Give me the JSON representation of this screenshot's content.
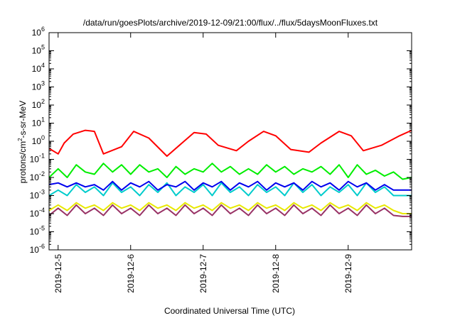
{
  "chart_data": {
    "type": "line",
    "title": "/data/run/goesPlots/archive/2019-12-09/21:00/flux/../flux/5daysMoonFluxes.txt",
    "xlabel": "Coordinated Universal Time (UTC)",
    "ylabel_base": "protons/cm",
    "ylabel_sup": "2",
    "ylabel_rest": "-s-sr-MeV",
    "yscale": "log",
    "ylim_exponent": [
      -6,
      6
    ],
    "y_tick_exponents": [
      -6,
      -5,
      -4,
      -3,
      -2,
      -1,
      0,
      1,
      2,
      3,
      4,
      5,
      6
    ],
    "y_tick_base": "10",
    "xlim": [
      "2019-12-04T21:00",
      "2019-12-09T21:00"
    ],
    "x_tick_labels": [
      "2019-12-5",
      "2019-12-6",
      "2019-12-7",
      "2019-12-8",
      "2019-12-9"
    ],
    "x_tick_values": [
      "2019-12-05T00:00",
      "2019-12-06T00:00",
      "2019-12-07T00:00",
      "2019-12-08T00:00",
      "2019-12-09T00:00"
    ],
    "grid": false,
    "legend": false,
    "series": [
      {
        "color": "#ff0000",
        "x": [
          "2019-12-04T21:00",
          "2019-12-05T00:00",
          "2019-12-05T02:00",
          "2019-12-05T05:00",
          "2019-12-05T09:00",
          "2019-12-05T12:00",
          "2019-12-05T15:00",
          "2019-12-05T21:00",
          "2019-12-06T01:00",
          "2019-12-06T06:00",
          "2019-12-06T12:00",
          "2019-12-06T17:00",
          "2019-12-06T21:00",
          "2019-12-07T01:00",
          "2019-12-07T05:00",
          "2019-12-07T11:00",
          "2019-12-07T15:00",
          "2019-12-07T20:00",
          "2019-12-08T00:00",
          "2019-12-08T05:00",
          "2019-12-08T11:00",
          "2019-12-08T15:00",
          "2019-12-08T21:00",
          "2019-12-09T01:00",
          "2019-12-09T05:00",
          "2019-12-09T11:00",
          "2019-12-09T17:00",
          "2019-12-09T21:00"
        ],
        "y": [
          0.4,
          0.2,
          0.8,
          2.5,
          4,
          3.5,
          0.2,
          0.5,
          3.5,
          1.5,
          0.15,
          0.8,
          3,
          2.5,
          0.6,
          0.3,
          1.0,
          3.5,
          2,
          0.35,
          0.25,
          0.8,
          3.5,
          2,
          0.3,
          0.6,
          2,
          4
        ]
      },
      {
        "color": "#00ee00",
        "x": [
          "2019-12-04T21:00",
          "2019-12-05T00:00",
          "2019-12-05T03:00",
          "2019-12-05T06:00",
          "2019-12-05T09:00",
          "2019-12-05T12:00",
          "2019-12-05T15:00",
          "2019-12-05T18:00",
          "2019-12-05T21:00",
          "2019-12-06T00:00",
          "2019-12-06T03:00",
          "2019-12-06T06:00",
          "2019-12-06T09:00",
          "2019-12-06T12:00",
          "2019-12-06T15:00",
          "2019-12-06T18:00",
          "2019-12-06T21:00",
          "2019-12-07T00:00",
          "2019-12-07T03:00",
          "2019-12-07T06:00",
          "2019-12-07T09:00",
          "2019-12-07T12:00",
          "2019-12-07T15:00",
          "2019-12-07T18:00",
          "2019-12-07T21:00",
          "2019-12-08T00:00",
          "2019-12-08T03:00",
          "2019-12-08T06:00",
          "2019-12-08T09:00",
          "2019-12-08T12:00",
          "2019-12-08T15:00",
          "2019-12-08T18:00",
          "2019-12-08T21:00",
          "2019-12-09T00:00",
          "2019-12-09T03:00",
          "2019-12-09T06:00",
          "2019-12-09T09:00",
          "2019-12-09T12:00",
          "2019-12-09T15:00",
          "2019-12-09T18:00",
          "2019-12-09T21:00"
        ],
        "y": [
          0.01,
          0.03,
          0.01,
          0.05,
          0.02,
          0.015,
          0.06,
          0.02,
          0.05,
          0.015,
          0.05,
          0.02,
          0.03,
          0.01,
          0.04,
          0.015,
          0.03,
          0.02,
          0.06,
          0.02,
          0.04,
          0.015,
          0.03,
          0.015,
          0.05,
          0.02,
          0.04,
          0.015,
          0.03,
          0.02,
          0.04,
          0.015,
          0.05,
          0.01,
          0.05,
          0.015,
          0.025,
          0.012,
          0.02,
          0.008,
          0.01
        ]
      },
      {
        "color": "#00cccc",
        "x": [
          "2019-12-04T21:00",
          "2019-12-05T00:00",
          "2019-12-05T03:00",
          "2019-12-05T06:00",
          "2019-12-05T09:00",
          "2019-12-05T12:00",
          "2019-12-05T15:00",
          "2019-12-05T18:00",
          "2019-12-05T21:00",
          "2019-12-06T00:00",
          "2019-12-06T03:00",
          "2019-12-06T06:00",
          "2019-12-06T09:00",
          "2019-12-06T12:00",
          "2019-12-06T15:00",
          "2019-12-06T18:00",
          "2019-12-06T21:00",
          "2019-12-07T00:00",
          "2019-12-07T03:00",
          "2019-12-07T06:00",
          "2019-12-07T09:00",
          "2019-12-07T12:00",
          "2019-12-07T15:00",
          "2019-12-07T18:00",
          "2019-12-07T21:00",
          "2019-12-08T00:00",
          "2019-12-08T03:00",
          "2019-12-08T06:00",
          "2019-12-08T09:00",
          "2019-12-08T12:00",
          "2019-12-08T15:00",
          "2019-12-08T18:00",
          "2019-12-08T21:00",
          "2019-12-09T00:00",
          "2019-12-09T03:00",
          "2019-12-09T06:00",
          "2019-12-09T09:00",
          "2019-12-09T12:00",
          "2019-12-09T15:00",
          "2019-12-09T18:00",
          "2019-12-09T21:00"
        ],
        "y": [
          0.001,
          0.002,
          0.001,
          0.004,
          0.0015,
          0.003,
          0.001,
          0.005,
          0.0015,
          0.003,
          0.001,
          0.004,
          0.0015,
          0.005,
          0.001,
          0.003,
          0.0015,
          0.004,
          0.001,
          0.005,
          0.0015,
          0.003,
          0.001,
          0.004,
          0.0015,
          0.003,
          0.001,
          0.005,
          0.0015,
          0.004,
          0.001,
          0.003,
          0.0015,
          0.004,
          0.001,
          0.005,
          0.0015,
          0.003,
          0.001,
          0.001,
          0.001
        ]
      },
      {
        "color": "#0000ee",
        "x": [
          "2019-12-04T21:00",
          "2019-12-05T00:00",
          "2019-12-05T03:00",
          "2019-12-05T06:00",
          "2019-12-05T09:00",
          "2019-12-05T12:00",
          "2019-12-05T15:00",
          "2019-12-05T18:00",
          "2019-12-05T21:00",
          "2019-12-06T00:00",
          "2019-12-06T03:00",
          "2019-12-06T06:00",
          "2019-12-06T09:00",
          "2019-12-06T12:00",
          "2019-12-06T15:00",
          "2019-12-06T18:00",
          "2019-12-06T21:00",
          "2019-12-07T00:00",
          "2019-12-07T03:00",
          "2019-12-07T06:00",
          "2019-12-07T09:00",
          "2019-12-07T12:00",
          "2019-12-07T15:00",
          "2019-12-07T18:00",
          "2019-12-07T21:00",
          "2019-12-08T00:00",
          "2019-12-08T03:00",
          "2019-12-08T06:00",
          "2019-12-08T09:00",
          "2019-12-08T12:00",
          "2019-12-08T15:00",
          "2019-12-08T18:00",
          "2019-12-08T21:00",
          "2019-12-09T00:00",
          "2019-12-09T03:00",
          "2019-12-09T06:00",
          "2019-12-09T09:00",
          "2019-12-09T12:00",
          "2019-12-09T15:00",
          "2019-12-09T18:00",
          "2019-12-09T21:00"
        ],
        "y": [
          0.004,
          0.005,
          0.003,
          0.005,
          0.003,
          0.004,
          0.002,
          0.006,
          0.002,
          0.005,
          0.003,
          0.006,
          0.002,
          0.004,
          0.003,
          0.006,
          0.002,
          0.005,
          0.003,
          0.006,
          0.002,
          0.005,
          0.003,
          0.006,
          0.002,
          0.005,
          0.003,
          0.005,
          0.002,
          0.006,
          0.003,
          0.005,
          0.002,
          0.006,
          0.003,
          0.005,
          0.002,
          0.004,
          0.002,
          0.002,
          0.002
        ]
      },
      {
        "color": "#e8e800",
        "x": [
          "2019-12-04T21:00",
          "2019-12-05T00:00",
          "2019-12-05T03:00",
          "2019-12-05T06:00",
          "2019-12-05T09:00",
          "2019-12-05T12:00",
          "2019-12-05T15:00",
          "2019-12-05T18:00",
          "2019-12-05T21:00",
          "2019-12-06T00:00",
          "2019-12-06T03:00",
          "2019-12-06T06:00",
          "2019-12-06T09:00",
          "2019-12-06T12:00",
          "2019-12-06T15:00",
          "2019-12-06T18:00",
          "2019-12-06T21:00",
          "2019-12-07T00:00",
          "2019-12-07T03:00",
          "2019-12-07T06:00",
          "2019-12-07T09:00",
          "2019-12-07T12:00",
          "2019-12-07T15:00",
          "2019-12-07T18:00",
          "2019-12-07T21:00",
          "2019-12-08T00:00",
          "2019-12-08T03:00",
          "2019-12-08T06:00",
          "2019-12-08T09:00",
          "2019-12-08T12:00",
          "2019-12-08T15:00",
          "2019-12-08T18:00",
          "2019-12-08T21:00",
          "2019-12-09T00:00",
          "2019-12-09T03:00",
          "2019-12-09T06:00",
          "2019-12-09T09:00",
          "2019-12-09T12:00",
          "2019-12-09T15:00",
          "2019-12-09T18:00",
          "2019-12-09T21:00"
        ],
        "y": [
          0.00015,
          0.0003,
          0.00015,
          0.0004,
          0.0002,
          0.0003,
          0.00015,
          0.0004,
          0.0002,
          0.0003,
          0.00015,
          0.0004,
          0.0002,
          0.0003,
          0.00015,
          0.0004,
          0.0002,
          0.0003,
          0.00015,
          0.0004,
          0.0002,
          0.0003,
          0.00015,
          0.0004,
          0.0002,
          0.0003,
          0.00015,
          0.0004,
          0.0002,
          0.0003,
          0.00015,
          0.0004,
          0.0002,
          0.0003,
          0.00015,
          0.0004,
          0.0002,
          0.0003,
          0.00015,
          0.0001,
          0.0001
        ]
      },
      {
        "color": "#993366",
        "x": [
          "2019-12-04T21:00",
          "2019-12-05T00:00",
          "2019-12-05T03:00",
          "2019-12-05T06:00",
          "2019-12-05T09:00",
          "2019-12-05T12:00",
          "2019-12-05T15:00",
          "2019-12-05T18:00",
          "2019-12-05T21:00",
          "2019-12-06T00:00",
          "2019-12-06T03:00",
          "2019-12-06T06:00",
          "2019-12-06T09:00",
          "2019-12-06T12:00",
          "2019-12-06T15:00",
          "2019-12-06T18:00",
          "2019-12-06T21:00",
          "2019-12-07T00:00",
          "2019-12-07T03:00",
          "2019-12-07T06:00",
          "2019-12-07T09:00",
          "2019-12-07T12:00",
          "2019-12-07T15:00",
          "2019-12-07T18:00",
          "2019-12-07T21:00",
          "2019-12-08T00:00",
          "2019-12-08T03:00",
          "2019-12-08T06:00",
          "2019-12-08T09:00",
          "2019-12-08T12:00",
          "2019-12-08T15:00",
          "2019-12-08T18:00",
          "2019-12-08T21:00",
          "2019-12-09T00:00",
          "2019-12-09T03:00",
          "2019-12-09T06:00",
          "2019-12-09T09:00",
          "2019-12-09T12:00",
          "2019-12-09T15:00",
          "2019-12-09T18:00",
          "2019-12-09T21:00"
        ],
        "y": [
          8e-05,
          0.0002,
          8e-05,
          0.0003,
          0.0001,
          0.0002,
          8e-05,
          0.0003,
          0.0001,
          0.0002,
          8e-05,
          0.0003,
          0.0001,
          0.0002,
          8e-05,
          0.0003,
          0.0001,
          0.0002,
          8e-05,
          0.0003,
          0.0001,
          0.0002,
          8e-05,
          0.0003,
          0.0001,
          0.0002,
          8e-05,
          0.0003,
          0.0001,
          0.0002,
          8e-05,
          0.0003,
          0.0001,
          0.0002,
          8e-05,
          0.0003,
          0.0001,
          0.0002,
          8e-05,
          7e-05,
          7e-05
        ]
      }
    ]
  }
}
